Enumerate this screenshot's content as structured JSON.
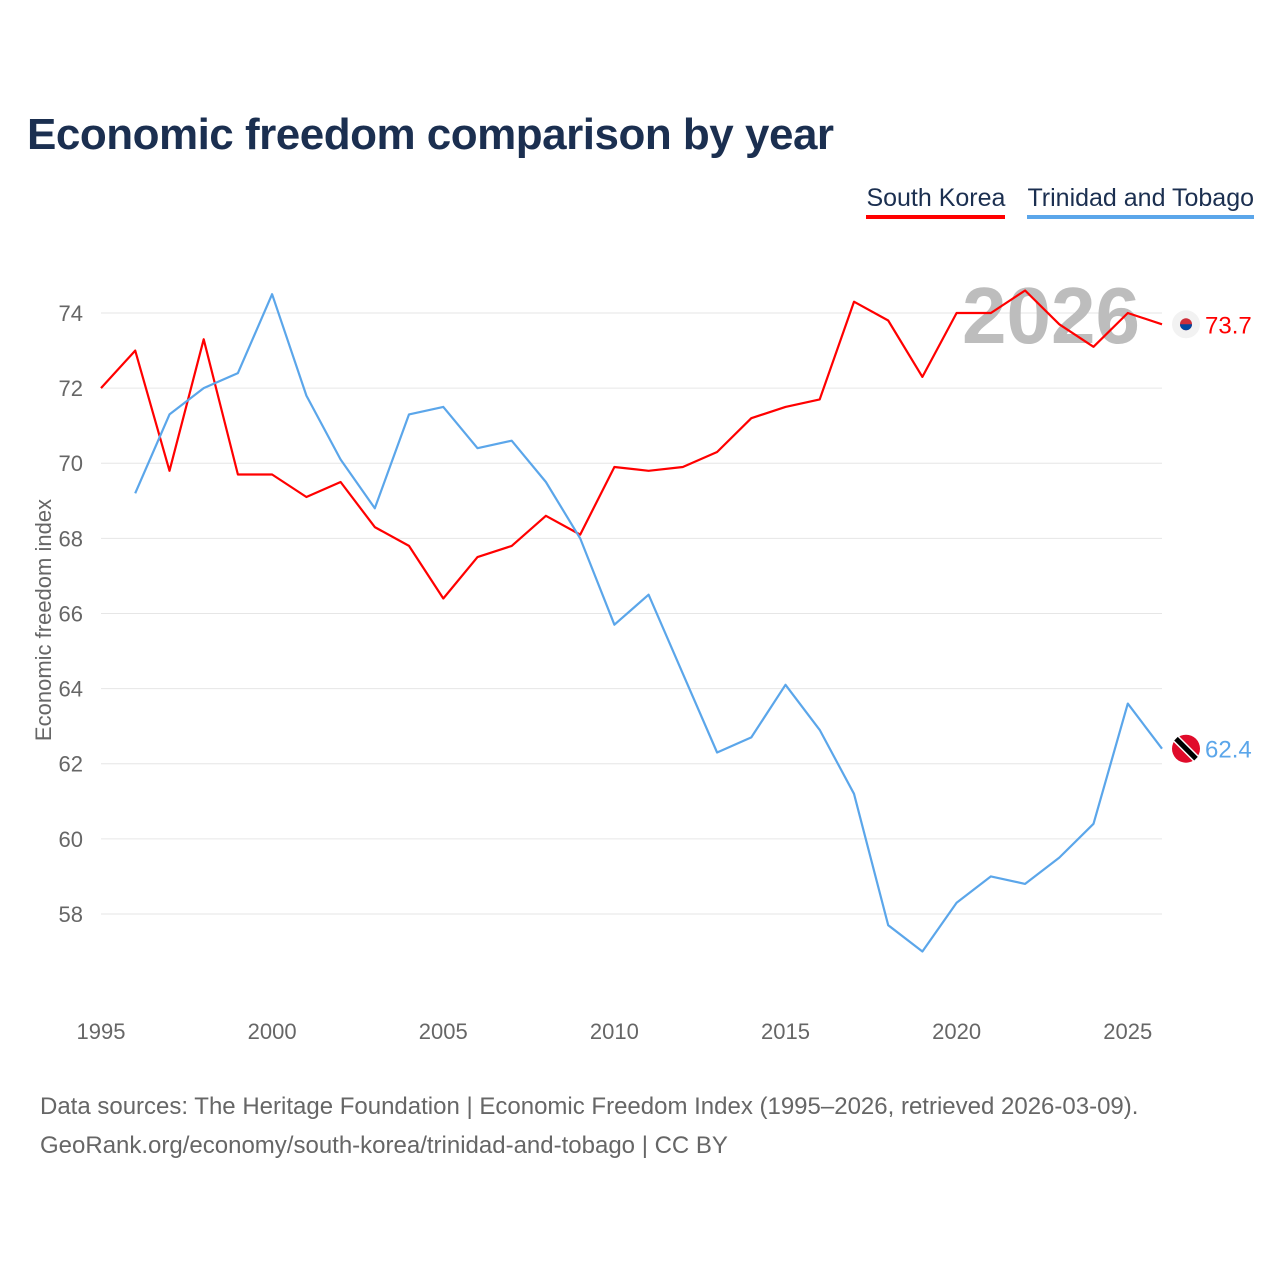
{
  "chart_data": {
    "type": "line",
    "title": "Economic freedom comparison by year",
    "xlabel": "",
    "ylabel": "Economic freedom index",
    "xlim": [
      1995,
      2026
    ],
    "ylim": [
      56,
      75
    ],
    "x_ticks": [
      1995,
      2000,
      2005,
      2010,
      2015,
      2020,
      2025
    ],
    "y_ticks": [
      58,
      60,
      62,
      64,
      66,
      68,
      70,
      72,
      74
    ],
    "grid": true,
    "legend_position": "top-right",
    "watermark_year": "2026",
    "series": [
      {
        "name": "South Korea",
        "color": "#ff0000",
        "end_label": "73.7",
        "x": [
          1995,
          1996,
          1997,
          1998,
          1999,
          2000,
          2001,
          2002,
          2003,
          2004,
          2005,
          2006,
          2007,
          2008,
          2009,
          2010,
          2011,
          2012,
          2013,
          2014,
          2015,
          2016,
          2017,
          2018,
          2019,
          2020,
          2021,
          2022,
          2023,
          2024,
          2025,
          2026
        ],
        "values": [
          72.0,
          73.0,
          69.8,
          73.3,
          69.7,
          69.7,
          69.1,
          69.5,
          68.3,
          67.8,
          66.4,
          67.5,
          67.8,
          68.6,
          68.1,
          69.9,
          69.8,
          69.9,
          70.3,
          71.2,
          71.5,
          71.7,
          74.3,
          73.8,
          72.3,
          74.0,
          74.0,
          74.6,
          73.7,
          73.1,
          74.0,
          73.7
        ]
      },
      {
        "name": "Trinidad and Tobago",
        "color": "#5ba6ea",
        "end_label": "62.4",
        "x": [
          1996,
          1997,
          1998,
          1999,
          2000,
          2001,
          2002,
          2003,
          2004,
          2005,
          2006,
          2007,
          2008,
          2009,
          2010,
          2011,
          2012,
          2013,
          2014,
          2015,
          2016,
          2017,
          2018,
          2019,
          2020,
          2021,
          2022,
          2023,
          2024,
          2025,
          2026
        ],
        "values": [
          69.2,
          71.3,
          72.0,
          72.4,
          74.5,
          71.8,
          70.1,
          68.8,
          71.3,
          71.5,
          70.4,
          70.6,
          69.5,
          68.0,
          65.7,
          66.5,
          64.4,
          62.3,
          62.7,
          64.1,
          62.9,
          61.2,
          57.7,
          57.0,
          58.3,
          59.0,
          58.8,
          59.5,
          60.4,
          63.6,
          62.4
        ]
      }
    ]
  },
  "footer": {
    "line1": "Data sources: The Heritage Foundation | Economic Freedom Index (1995–2026, retrieved 2026-03-09).",
    "line2": "GeoRank.org/economy/south-korea/trinidad-and-tobago | CC BY"
  }
}
